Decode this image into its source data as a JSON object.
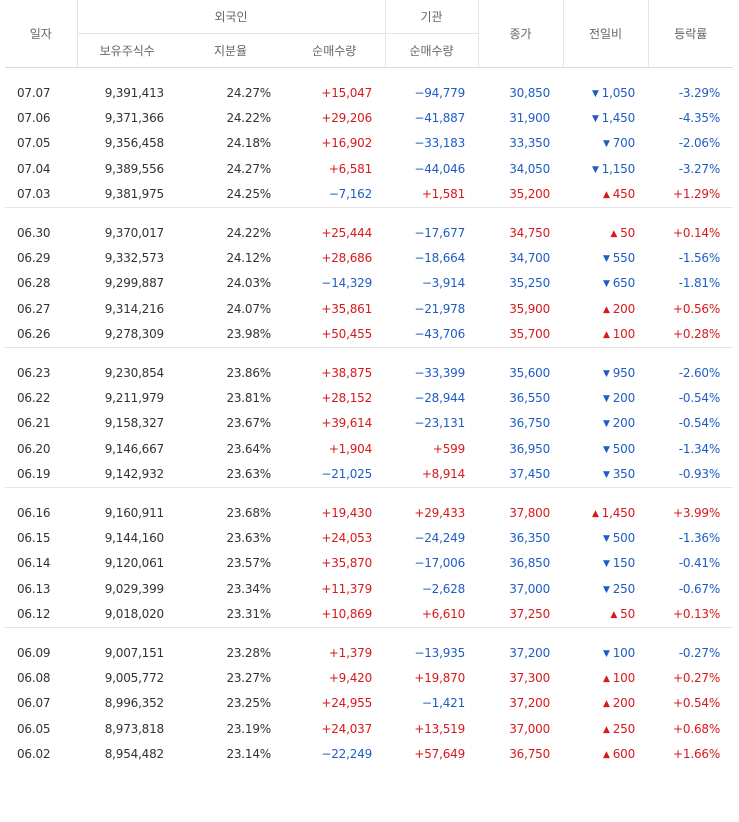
{
  "headers": {
    "date": "일자",
    "foreign": "외국인",
    "institution": "기관",
    "close": "종가",
    "change": "전일비",
    "rate": "등락률",
    "holdings": "보유주식수",
    "share": "지분율",
    "foreign_net": "순매수량",
    "inst_net": "순매수량"
  },
  "colors": {
    "up": "#d7191c",
    "down": "#1f5dc5"
  },
  "groups": [
    {
      "rows": [
        {
          "date": "07.07",
          "holdings": "9,391,413",
          "share": "24.27%",
          "foreign_net": "+15,047",
          "inst_net": "−94,779",
          "close": "30,850",
          "change": "1,050",
          "dir": "down",
          "rate": "-3.29%"
        },
        {
          "date": "07.06",
          "holdings": "9,371,366",
          "share": "24.22%",
          "foreign_net": "+29,206",
          "inst_net": "−41,887",
          "close": "31,900",
          "change": "1,450",
          "dir": "down",
          "rate": "-4.35%"
        },
        {
          "date": "07.05",
          "holdings": "9,356,458",
          "share": "24.18%",
          "foreign_net": "+16,902",
          "inst_net": "−33,183",
          "close": "33,350",
          "change": "700",
          "dir": "down",
          "rate": "-2.06%"
        },
        {
          "date": "07.04",
          "holdings": "9,389,556",
          "share": "24.27%",
          "foreign_net": "+6,581",
          "inst_net": "−44,046",
          "close": "34,050",
          "change": "1,150",
          "dir": "down",
          "rate": "-3.27%"
        },
        {
          "date": "07.03",
          "holdings": "9,381,975",
          "share": "24.25%",
          "foreign_net": "−7,162",
          "inst_net": "+1,581",
          "close": "35,200",
          "change": "450",
          "dir": "up",
          "rate": "+1.29%"
        }
      ]
    },
    {
      "rows": [
        {
          "date": "06.30",
          "holdings": "9,370,017",
          "share": "24.22%",
          "foreign_net": "+25,444",
          "inst_net": "−17,677",
          "close": "34,750",
          "change": "50",
          "dir": "up",
          "rate": "+0.14%"
        },
        {
          "date": "06.29",
          "holdings": "9,332,573",
          "share": "24.12%",
          "foreign_net": "+28,686",
          "inst_net": "−18,664",
          "close": "34,700",
          "change": "550",
          "dir": "down",
          "rate": "-1.56%"
        },
        {
          "date": "06.28",
          "holdings": "9,299,887",
          "share": "24.03%",
          "foreign_net": "−14,329",
          "inst_net": "−3,914",
          "close": "35,250",
          "change": "650",
          "dir": "down",
          "rate": "-1.81%"
        },
        {
          "date": "06.27",
          "holdings": "9,314,216",
          "share": "24.07%",
          "foreign_net": "+35,861",
          "inst_net": "−21,978",
          "close": "35,900",
          "change": "200",
          "dir": "up",
          "rate": "+0.56%"
        },
        {
          "date": "06.26",
          "holdings": "9,278,309",
          "share": "23.98%",
          "foreign_net": "+50,455",
          "inst_net": "−43,706",
          "close": "35,700",
          "change": "100",
          "dir": "up",
          "rate": "+0.28%"
        }
      ]
    },
    {
      "rows": [
        {
          "date": "06.23",
          "holdings": "9,230,854",
          "share": "23.86%",
          "foreign_net": "+38,875",
          "inst_net": "−33,399",
          "close": "35,600",
          "change": "950",
          "dir": "down",
          "rate": "-2.60%"
        },
        {
          "date": "06.22",
          "holdings": "9,211,979",
          "share": "23.81%",
          "foreign_net": "+28,152",
          "inst_net": "−28,944",
          "close": "36,550",
          "change": "200",
          "dir": "down",
          "rate": "-0.54%"
        },
        {
          "date": "06.21",
          "holdings": "9,158,327",
          "share": "23.67%",
          "foreign_net": "+39,614",
          "inst_net": "−23,131",
          "close": "36,750",
          "change": "200",
          "dir": "down",
          "rate": "-0.54%"
        },
        {
          "date": "06.20",
          "holdings": "9,146,667",
          "share": "23.64%",
          "foreign_net": "+1,904",
          "inst_net": "+599",
          "close": "36,950",
          "change": "500",
          "dir": "down",
          "rate": "-1.34%"
        },
        {
          "date": "06.19",
          "holdings": "9,142,932",
          "share": "23.63%",
          "foreign_net": "−21,025",
          "inst_net": "+8,914",
          "close": "37,450",
          "change": "350",
          "dir": "down",
          "rate": "-0.93%"
        }
      ]
    },
    {
      "rows": [
        {
          "date": "06.16",
          "holdings": "9,160,911",
          "share": "23.68%",
          "foreign_net": "+19,430",
          "inst_net": "+29,433",
          "close": "37,800",
          "change": "1,450",
          "dir": "up",
          "rate": "+3.99%"
        },
        {
          "date": "06.15",
          "holdings": "9,144,160",
          "share": "23.63%",
          "foreign_net": "+24,053",
          "inst_net": "−24,249",
          "close": "36,350",
          "change": "500",
          "dir": "down",
          "rate": "-1.36%"
        },
        {
          "date": "06.14",
          "holdings": "9,120,061",
          "share": "23.57%",
          "foreign_net": "+35,870",
          "inst_net": "−17,006",
          "close": "36,850",
          "change": "150",
          "dir": "down",
          "rate": "-0.41%"
        },
        {
          "date": "06.13",
          "holdings": "9,029,399",
          "share": "23.34%",
          "foreign_net": "+11,379",
          "inst_net": "−2,628",
          "close": "37,000",
          "change": "250",
          "dir": "down",
          "rate": "-0.67%"
        },
        {
          "date": "06.12",
          "holdings": "9,018,020",
          "share": "23.31%",
          "foreign_net": "+10,869",
          "inst_net": "+6,610",
          "close": "37,250",
          "change": "50",
          "dir": "up",
          "rate": "+0.13%"
        }
      ]
    },
    {
      "rows": [
        {
          "date": "06.09",
          "holdings": "9,007,151",
          "share": "23.28%",
          "foreign_net": "+1,379",
          "inst_net": "−13,935",
          "close": "37,200",
          "change": "100",
          "dir": "down",
          "rate": "-0.27%"
        },
        {
          "date": "06.08",
          "holdings": "9,005,772",
          "share": "23.27%",
          "foreign_net": "+9,420",
          "inst_net": "+19,870",
          "close": "37,300",
          "change": "100",
          "dir": "up",
          "rate": "+0.27%"
        },
        {
          "date": "06.07",
          "holdings": "8,996,352",
          "share": "23.25%",
          "foreign_net": "+24,955",
          "inst_net": "−1,421",
          "close": "37,200",
          "change": "200",
          "dir": "up",
          "rate": "+0.54%"
        },
        {
          "date": "06.05",
          "holdings": "8,973,818",
          "share": "23.19%",
          "foreign_net": "+24,037",
          "inst_net": "+13,519",
          "close": "37,000",
          "change": "250",
          "dir": "up",
          "rate": "+0.68%"
        },
        {
          "date": "06.02",
          "holdings": "8,954,482",
          "share": "23.14%",
          "foreign_net": "−22,249",
          "inst_net": "+57,649",
          "close": "36,750",
          "change": "600",
          "dir": "up",
          "rate": "+1.66%"
        }
      ]
    }
  ]
}
